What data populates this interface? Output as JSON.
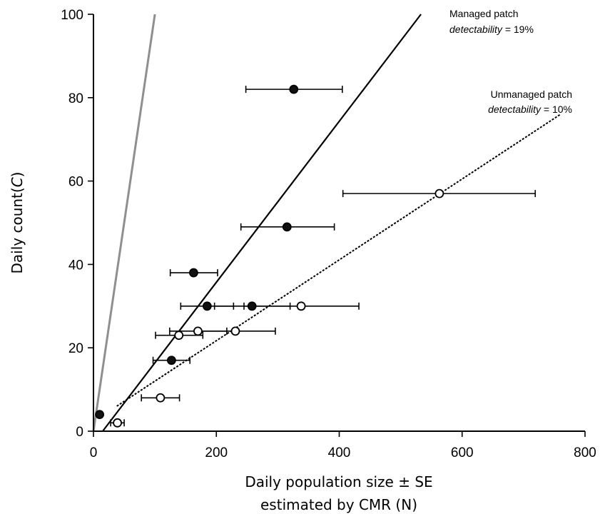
{
  "chart_data": {
    "type": "scatter",
    "xlabel_line1": "Daily population size ± SE",
    "xlabel_line2": "estimated by CMR (N)",
    "ylabel_prefix": "Daily count",
    "ylabel_var": "C",
    "xlim": [
      0,
      800
    ],
    "ylim": [
      0,
      100
    ],
    "x_ticks": [
      0,
      200,
      400,
      600,
      800
    ],
    "y_ticks": [
      0,
      20,
      40,
      60,
      80,
      100
    ],
    "grid": false,
    "series": [
      {
        "marker": "filled",
        "points": [
          {
            "x": 10,
            "y": 4
          },
          {
            "x": 127,
            "y": 17,
            "xerr_low": 97,
            "xerr_high": 157
          },
          {
            "x": 163,
            "y": 38,
            "xerr_low": 125,
            "xerr_high": 202
          },
          {
            "x": 185,
            "y": 30,
            "xerr_low": 142,
            "xerr_high": 228
          },
          {
            "x": 258,
            "y": 30,
            "xerr_low": 197,
            "xerr_high": 320
          },
          {
            "x": 315,
            "y": 49,
            "xerr_low": 240,
            "xerr_high": 392
          },
          {
            "x": 326,
            "y": 82,
            "xerr_low": 248,
            "xerr_high": 405
          }
        ]
      },
      {
        "marker": "open",
        "points": [
          {
            "x": 39,
            "y": 2,
            "xerr_low": 28,
            "xerr_high": 50
          },
          {
            "x": 109,
            "y": 8,
            "xerr_low": 78,
            "xerr_high": 140
          },
          {
            "x": 139,
            "y": 23,
            "xerr_low": 101,
            "xerr_high": 178
          },
          {
            "x": 170,
            "y": 24,
            "xerr_low": 124,
            "xerr_high": 217
          },
          {
            "x": 231,
            "y": 24,
            "xerr_low": 166,
            "xerr_high": 296
          },
          {
            "x": 338,
            "y": 30,
            "xerr_low": 245,
            "xerr_high": 432
          },
          {
            "x": 563,
            "y": 57,
            "xerr_low": 406,
            "xerr_high": 719
          }
        ]
      }
    ],
    "lines": [
      {
        "style": "solid-gray",
        "color": "#8f8f8f",
        "x1": 0,
        "y1": 0,
        "x2": 100,
        "y2": 100
      },
      {
        "style": "solid-black",
        "color": "#000000",
        "x1": 15,
        "y1": 0,
        "x2": 533,
        "y2": 100
      },
      {
        "style": "dotted-black",
        "color": "#000000",
        "x1": 38,
        "y1": 6,
        "x2": 760,
        "y2": 76
      }
    ],
    "annotations": [
      {
        "line1": "Managed patch",
        "line2_italic": "detectability",
        "line2_rest": " = 19%"
      },
      {
        "line1": "Unmanaged patch",
        "line2_italic": "detectability",
        "line2_rest": " = 10%"
      }
    ]
  }
}
